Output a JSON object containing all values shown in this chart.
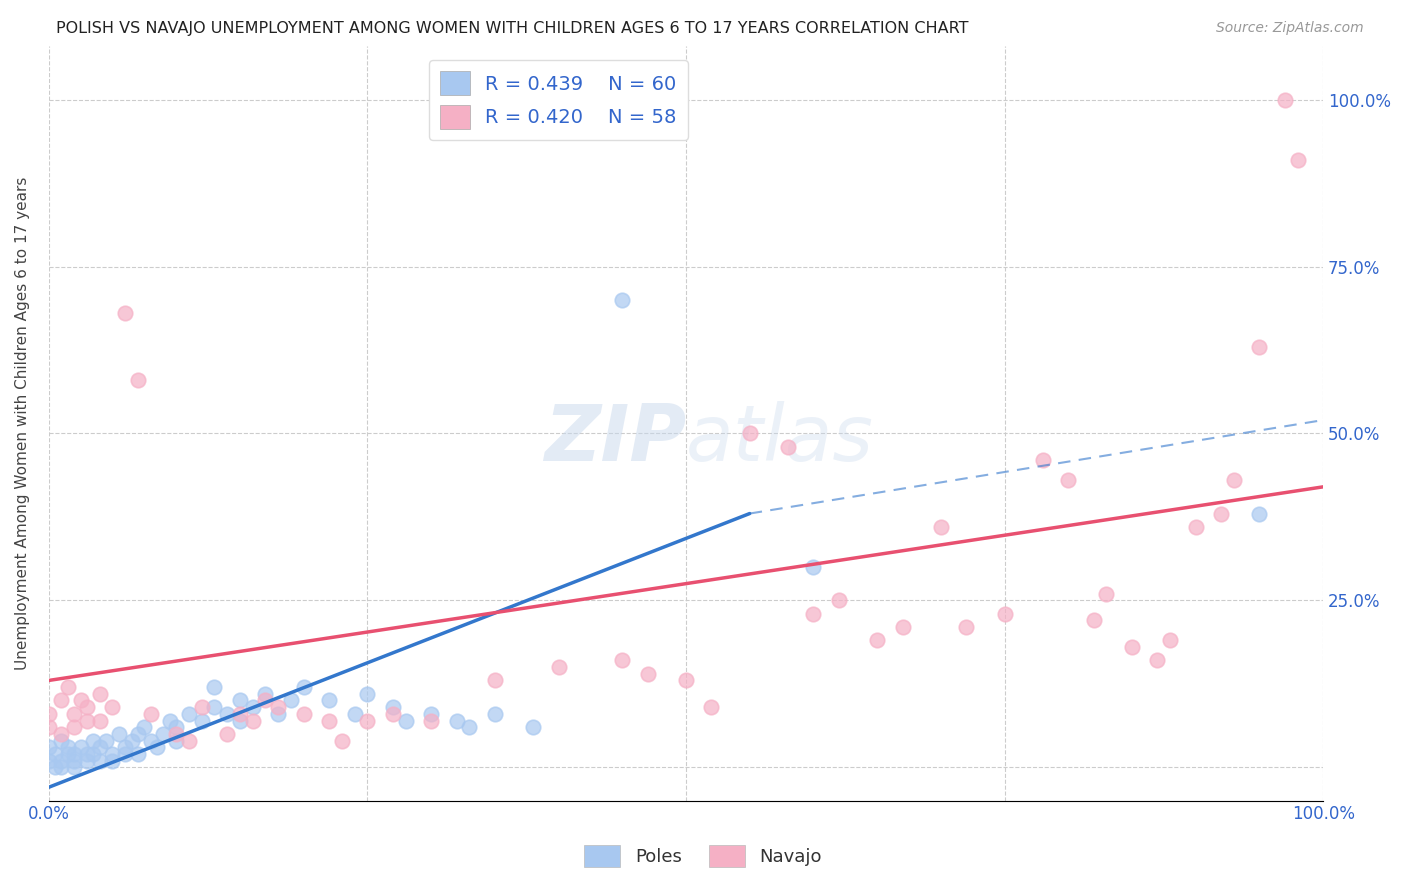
{
  "title": "POLISH VS NAVAJO UNEMPLOYMENT AMONG WOMEN WITH CHILDREN AGES 6 TO 17 YEARS CORRELATION CHART",
  "source": "Source: ZipAtlas.com",
  "ylabel": "Unemployment Among Women with Children Ages 6 to 17 years",
  "poles_color": "#A8C8F0",
  "navajo_color": "#F5B0C5",
  "poles_line_color": "#3377CC",
  "navajo_line_color": "#E85070",
  "poles_R": 0.439,
  "poles_N": 60,
  "navajo_R": 0.42,
  "navajo_N": 58,
  "background_color": "#FFFFFF",
  "poles_data": [
    [
      0.0,
      0.03
    ],
    [
      0.0,
      0.01
    ],
    [
      0.005,
      0.02
    ],
    [
      0.005,
      0.0
    ],
    [
      0.01,
      0.04
    ],
    [
      0.01,
      0.01
    ],
    [
      0.01,
      0.0
    ],
    [
      0.015,
      0.02
    ],
    [
      0.015,
      0.03
    ],
    [
      0.02,
      0.01
    ],
    [
      0.02,
      0.02
    ],
    [
      0.02,
      0.0
    ],
    [
      0.025,
      0.03
    ],
    [
      0.03,
      0.01
    ],
    [
      0.03,
      0.02
    ],
    [
      0.035,
      0.04
    ],
    [
      0.035,
      0.02
    ],
    [
      0.04,
      0.03
    ],
    [
      0.04,
      0.01
    ],
    [
      0.045,
      0.04
    ],
    [
      0.05,
      0.02
    ],
    [
      0.05,
      0.01
    ],
    [
      0.055,
      0.05
    ],
    [
      0.06,
      0.03
    ],
    [
      0.06,
      0.02
    ],
    [
      0.065,
      0.04
    ],
    [
      0.07,
      0.05
    ],
    [
      0.07,
      0.02
    ],
    [
      0.075,
      0.06
    ],
    [
      0.08,
      0.04
    ],
    [
      0.085,
      0.03
    ],
    [
      0.09,
      0.05
    ],
    [
      0.095,
      0.07
    ],
    [
      0.1,
      0.06
    ],
    [
      0.1,
      0.04
    ],
    [
      0.11,
      0.08
    ],
    [
      0.12,
      0.07
    ],
    [
      0.13,
      0.09
    ],
    [
      0.13,
      0.12
    ],
    [
      0.14,
      0.08
    ],
    [
      0.15,
      0.1
    ],
    [
      0.15,
      0.07
    ],
    [
      0.16,
      0.09
    ],
    [
      0.17,
      0.11
    ],
    [
      0.18,
      0.08
    ],
    [
      0.19,
      0.1
    ],
    [
      0.2,
      0.12
    ],
    [
      0.22,
      0.1
    ],
    [
      0.24,
      0.08
    ],
    [
      0.25,
      0.11
    ],
    [
      0.27,
      0.09
    ],
    [
      0.28,
      0.07
    ],
    [
      0.3,
      0.08
    ],
    [
      0.32,
      0.07
    ],
    [
      0.33,
      0.06
    ],
    [
      0.35,
      0.08
    ],
    [
      0.38,
      0.06
    ],
    [
      0.45,
      0.7
    ],
    [
      0.6,
      0.3
    ],
    [
      0.95,
      0.38
    ]
  ],
  "navajo_data": [
    [
      0.0,
      0.08
    ],
    [
      0.0,
      0.06
    ],
    [
      0.01,
      0.05
    ],
    [
      0.01,
      0.1
    ],
    [
      0.015,
      0.12
    ],
    [
      0.02,
      0.08
    ],
    [
      0.02,
      0.06
    ],
    [
      0.025,
      0.1
    ],
    [
      0.03,
      0.07
    ],
    [
      0.03,
      0.09
    ],
    [
      0.04,
      0.11
    ],
    [
      0.04,
      0.07
    ],
    [
      0.05,
      0.09
    ],
    [
      0.06,
      0.68
    ],
    [
      0.07,
      0.58
    ],
    [
      0.08,
      0.08
    ],
    [
      0.1,
      0.05
    ],
    [
      0.11,
      0.04
    ],
    [
      0.12,
      0.09
    ],
    [
      0.14,
      0.05
    ],
    [
      0.15,
      0.08
    ],
    [
      0.16,
      0.07
    ],
    [
      0.17,
      0.1
    ],
    [
      0.18,
      0.09
    ],
    [
      0.2,
      0.08
    ],
    [
      0.22,
      0.07
    ],
    [
      0.23,
      0.04
    ],
    [
      0.25,
      0.07
    ],
    [
      0.27,
      0.08
    ],
    [
      0.3,
      0.07
    ],
    [
      0.35,
      0.13
    ],
    [
      0.4,
      0.15
    ],
    [
      0.45,
      0.16
    ],
    [
      0.47,
      0.14
    ],
    [
      0.5,
      0.13
    ],
    [
      0.52,
      0.09
    ],
    [
      0.55,
      0.5
    ],
    [
      0.58,
      0.48
    ],
    [
      0.6,
      0.23
    ],
    [
      0.62,
      0.25
    ],
    [
      0.65,
      0.19
    ],
    [
      0.67,
      0.21
    ],
    [
      0.7,
      0.36
    ],
    [
      0.72,
      0.21
    ],
    [
      0.75,
      0.23
    ],
    [
      0.78,
      0.46
    ],
    [
      0.8,
      0.43
    ],
    [
      0.82,
      0.22
    ],
    [
      0.83,
      0.26
    ],
    [
      0.85,
      0.18
    ],
    [
      0.87,
      0.16
    ],
    [
      0.88,
      0.19
    ],
    [
      0.9,
      0.36
    ],
    [
      0.92,
      0.38
    ],
    [
      0.93,
      0.43
    ],
    [
      0.95,
      0.63
    ],
    [
      0.97,
      1.0
    ],
    [
      0.98,
      0.91
    ]
  ],
  "dashed_line": [
    [
      0.55,
      0.38
    ],
    [
      1.0,
      0.52
    ]
  ],
  "blue_solid_line": [
    [
      0.0,
      -0.03
    ],
    [
      0.55,
      0.38
    ]
  ],
  "pink_solid_line": [
    [
      0.0,
      0.13
    ],
    [
      1.0,
      0.42
    ]
  ]
}
